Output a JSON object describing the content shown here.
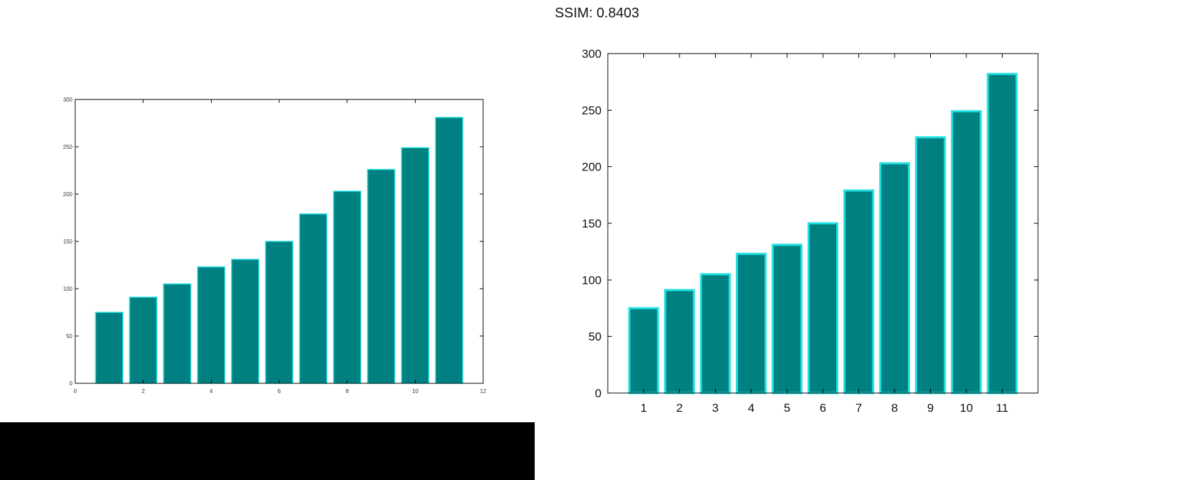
{
  "header": {
    "title": "SSIM: 0.8403"
  },
  "chart_data": [
    {
      "type": "bar",
      "x": [
        1,
        2,
        3,
        4,
        5,
        6,
        7,
        8,
        9,
        10,
        11
      ],
      "values": [
        75,
        91,
        105,
        123,
        131,
        150,
        179,
        203,
        226,
        249,
        281
      ],
      "xlim": [
        0,
        12
      ],
      "ylim": [
        0,
        300
      ],
      "xticks": [
        "0",
        "2",
        "4",
        "6",
        "8",
        "10",
        "12"
      ],
      "yticks": [
        "0",
        "50",
        "100",
        "150",
        "200",
        "250",
        "300"
      ],
      "bar_color": "#008080",
      "edge_color": "#20e0e0",
      "title": "",
      "xlabel": "",
      "ylabel": "",
      "grid": false
    },
    {
      "type": "bar",
      "categories": [
        "1",
        "2",
        "3",
        "4",
        "5",
        "6",
        "7",
        "8",
        "9",
        "10",
        "11"
      ],
      "values": [
        75,
        91,
        105,
        123,
        131,
        150,
        179,
        203,
        226,
        249,
        282
      ],
      "ylim": [
        0,
        300
      ],
      "yticks": [
        "0",
        "50",
        "100",
        "150",
        "200",
        "250",
        "300"
      ],
      "bar_color": "#008080",
      "edge_color": "#20e0e0",
      "title": "",
      "xlabel": "",
      "ylabel": "",
      "grid": false
    }
  ]
}
